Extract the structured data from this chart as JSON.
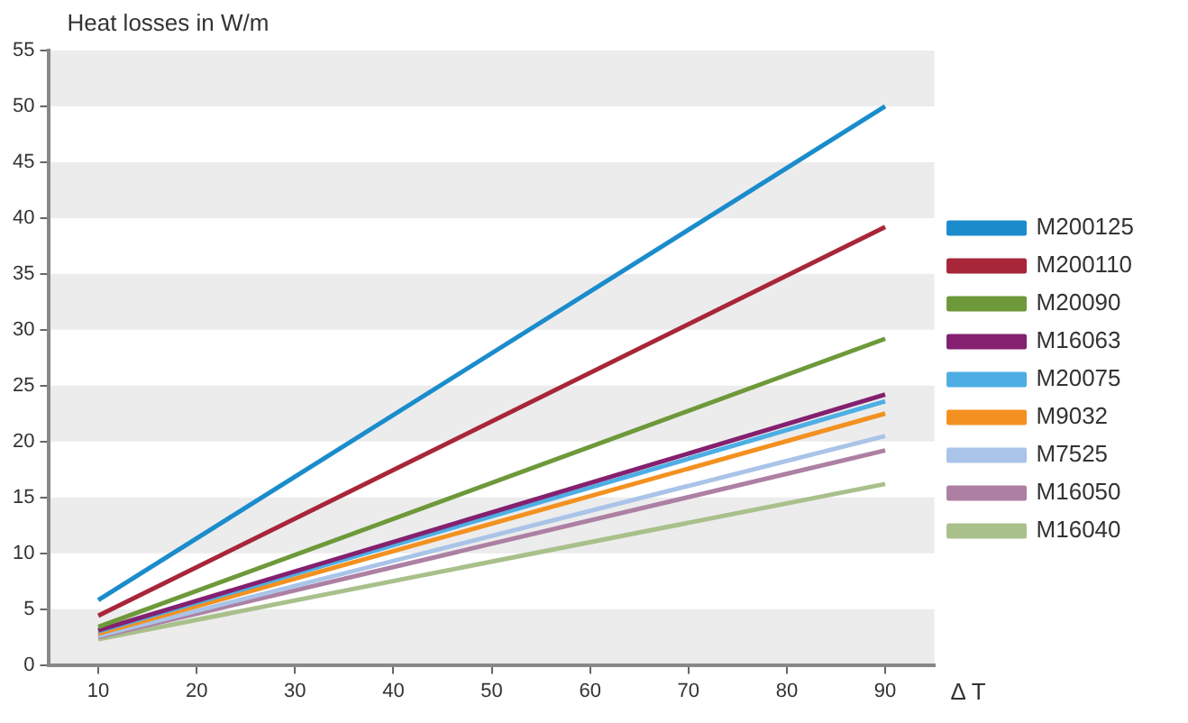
{
  "chart_data": {
    "type": "line",
    "ylabel": "Heat losses in W/m",
    "xlabel": "Δ T",
    "x": [
      10,
      90
    ],
    "series": [
      {
        "name": "M200125",
        "color": "#1a8ccc",
        "values": [
          5.8,
          50
        ]
      },
      {
        "name": "M200110",
        "color": "#a82639",
        "values": [
          4.4,
          39.2
        ]
      },
      {
        "name": "M20090",
        "color": "#6e993a",
        "values": [
          3.4,
          29.2
        ]
      },
      {
        "name": "M16063",
        "color": "#84206f",
        "values": [
          3.1,
          24.2
        ]
      },
      {
        "name": "M20075",
        "color": "#4eaee3",
        "values": [
          3.0,
          23.6
        ]
      },
      {
        "name": "M9032",
        "color": "#f39120",
        "values": [
          2.8,
          22.5
        ]
      },
      {
        "name": "M7525",
        "color": "#a9c4e8",
        "values": [
          2.6,
          20.5
        ]
      },
      {
        "name": "M16050",
        "color": "#ad80a3",
        "values": [
          2.5,
          19.2
        ]
      },
      {
        "name": "M16040",
        "color": "#a9c08b",
        "values": [
          2.3,
          16.2
        ]
      }
    ],
    "xlim": [
      5,
      95
    ],
    "xticks": [
      10,
      20,
      30,
      40,
      50,
      60,
      70,
      80,
      90
    ],
    "ylim": [
      0,
      55
    ],
    "yticks": [
      0,
      5,
      10,
      15,
      20,
      25,
      30,
      35,
      40,
      45,
      50,
      55
    ],
    "bands": [
      {
        "axis": "y",
        "from": 0,
        "to": 5,
        "color": "#ececec"
      },
      {
        "axis": "y",
        "from": 10,
        "to": 15,
        "color": "#ececec"
      },
      {
        "axis": "y",
        "from": 20,
        "to": 25,
        "color": "#ececec"
      },
      {
        "axis": "y",
        "from": 30,
        "to": 35,
        "color": "#ececec"
      },
      {
        "axis": "y",
        "from": 40,
        "to": 45,
        "color": "#ececec"
      },
      {
        "axis": "y",
        "from": 50,
        "to": 55,
        "color": "#ececec"
      }
    ],
    "legend": "right",
    "marker": "none",
    "line_style": "solid"
  }
}
